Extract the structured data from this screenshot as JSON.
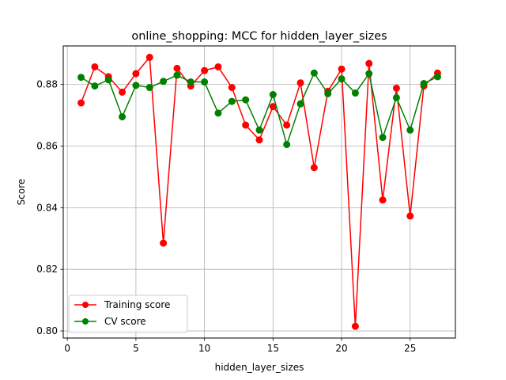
{
  "chart_data": {
    "type": "line",
    "title": "online_shopping: MCC for hidden_layer_sizes",
    "xlabel": "hidden_layer_sizes",
    "ylabel": "Score",
    "xlim": [
      -0.3,
      28.3
    ],
    "ylim": [
      0.7977,
      0.8925
    ],
    "xticks": [
      0,
      5,
      10,
      15,
      20,
      25
    ],
    "yticks": [
      0.8,
      0.82,
      0.84,
      0.86,
      0.88
    ],
    "ytick_labels": [
      "0.80",
      "0.82",
      "0.84",
      "0.86",
      "0.88"
    ],
    "grid": true,
    "legend_position": "lower-left",
    "x": [
      1,
      2,
      3,
      4,
      5,
      6,
      7,
      8,
      9,
      10,
      11,
      12,
      13,
      14,
      15,
      16,
      17,
      18,
      19,
      20,
      21,
      22,
      23,
      24,
      25,
      26,
      27
    ],
    "series": [
      {
        "name": "Training score",
        "color": "#ff0000",
        "values": [
          0.874,
          0.8857,
          0.8825,
          0.8775,
          0.8835,
          0.8888,
          0.8285,
          0.8852,
          0.8795,
          0.8845,
          0.8857,
          0.879,
          0.8668,
          0.862,
          0.8728,
          0.8668,
          0.8805,
          0.853,
          0.8778,
          0.885,
          0.8015,
          0.8868,
          0.8425,
          0.8788,
          0.8373,
          0.8795,
          0.8837
        ]
      },
      {
        "name": "CV score",
        "color": "#008000",
        "values": [
          0.8823,
          0.8795,
          0.8815,
          0.8695,
          0.8797,
          0.879,
          0.881,
          0.883,
          0.8808,
          0.8808,
          0.8707,
          0.8745,
          0.875,
          0.8652,
          0.8767,
          0.8605,
          0.8737,
          0.8837,
          0.877,
          0.8818,
          0.8772,
          0.8835,
          0.8628,
          0.8757,
          0.8652,
          0.8803,
          0.8825
        ]
      }
    ]
  }
}
